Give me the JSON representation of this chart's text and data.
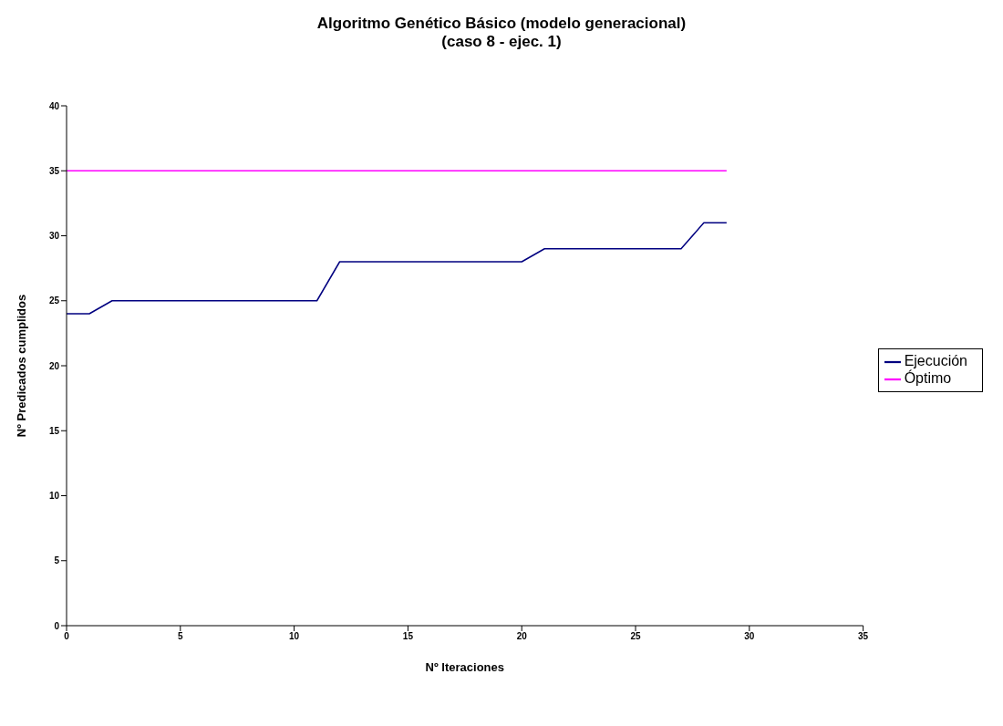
{
  "chart_data": {
    "type": "line",
    "title": "Algoritmo Genético Básico (modelo generacional)",
    "subtitle": "(caso 8 - ejec. 1)",
    "xlabel": "Nº Iteraciones",
    "ylabel": "Nº Predicados cumplidos",
    "x": [
      0,
      1,
      2,
      3,
      4,
      5,
      6,
      7,
      8,
      9,
      10,
      11,
      12,
      13,
      14,
      15,
      16,
      17,
      18,
      19,
      20,
      21,
      22,
      23,
      24,
      25,
      26,
      27,
      28,
      29
    ],
    "series": [
      {
        "name": "Ejecución",
        "color": "#000080",
        "values": [
          24,
          24,
          25,
          25,
          25,
          25,
          25,
          25,
          25,
          25,
          25,
          25,
          28,
          28,
          28,
          28,
          28,
          28,
          28,
          28,
          28,
          29,
          29,
          29,
          29,
          29,
          29,
          29,
          31,
          31
        ]
      },
      {
        "name": "Óptimo",
        "color": "#ff00ff",
        "values": [
          35,
          35,
          35,
          35,
          35,
          35,
          35,
          35,
          35,
          35,
          35,
          35,
          35,
          35,
          35,
          35,
          35,
          35,
          35,
          35,
          35,
          35,
          35,
          35,
          35,
          35,
          35,
          35,
          35,
          35
        ]
      }
    ],
    "xlim": [
      0,
      35
    ],
    "xticks": [
      0,
      5,
      10,
      15,
      20,
      25,
      30,
      35
    ],
    "ylim": [
      0,
      40
    ],
    "yticks": [
      0,
      5,
      10,
      15,
      20,
      25,
      30,
      35,
      40
    ],
    "grid": false,
    "legend": "right",
    "marker": "none",
    "line_style": "solid"
  }
}
